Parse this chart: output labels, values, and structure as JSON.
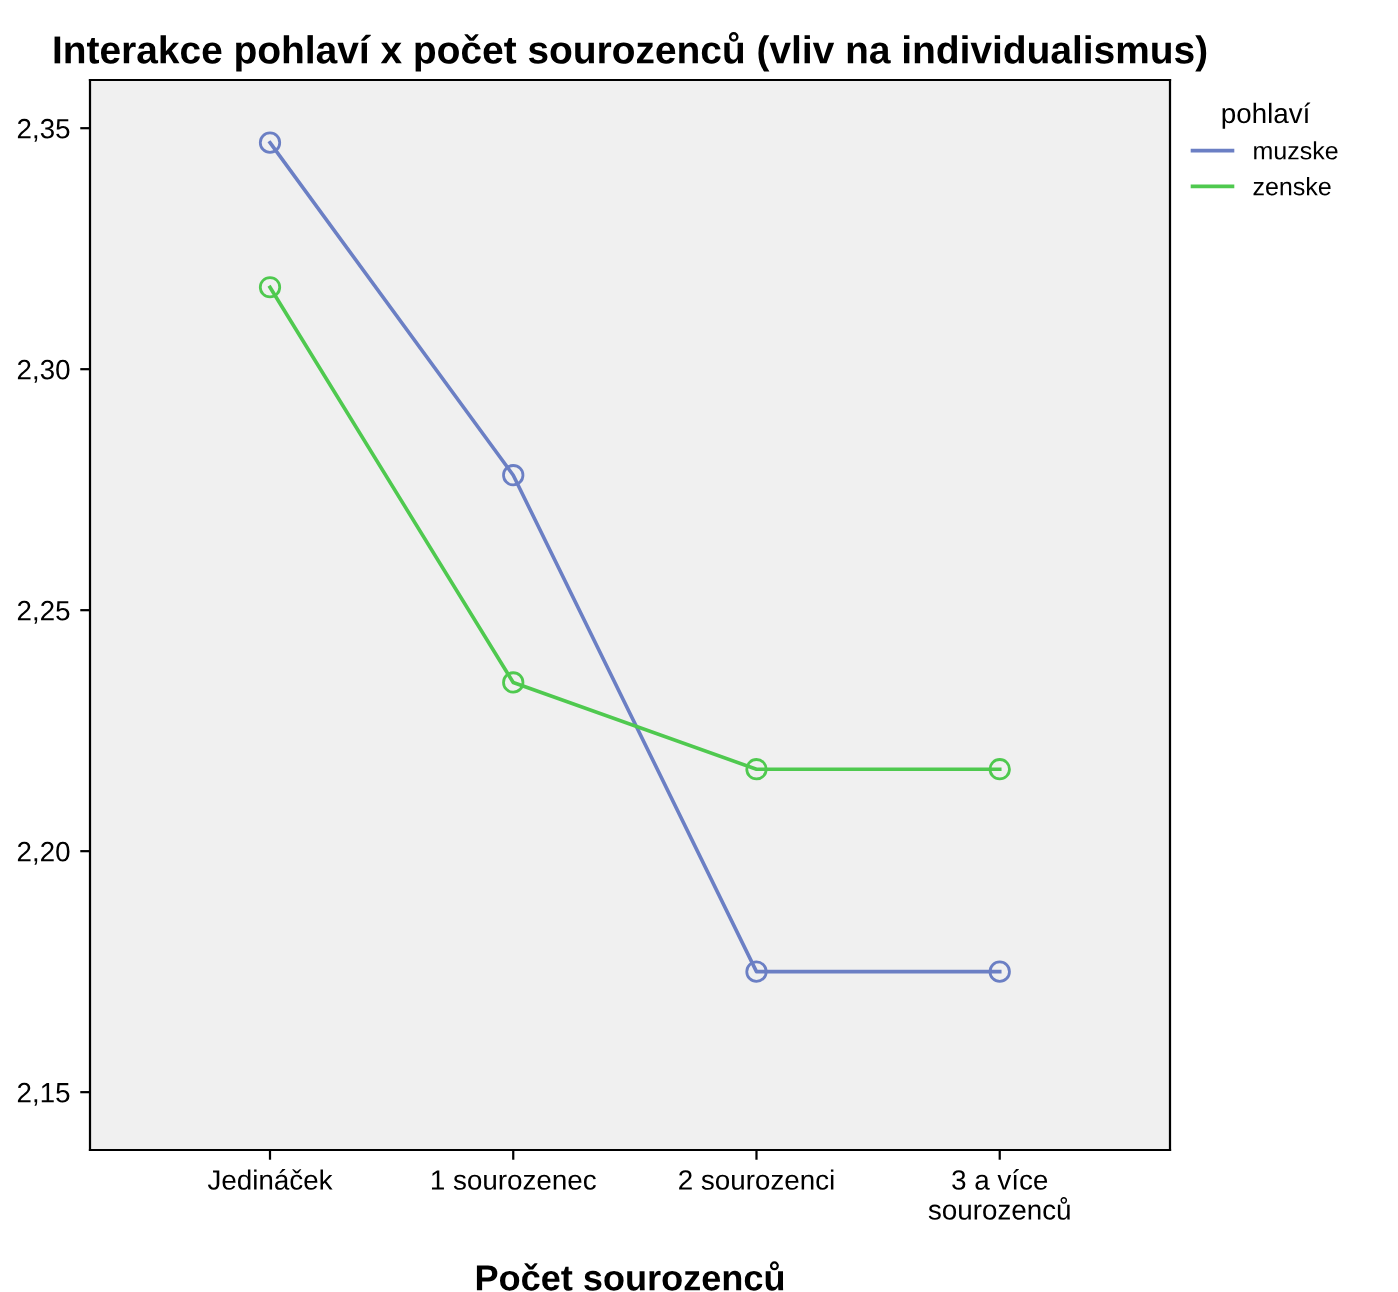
{
  "chart_data": {
    "type": "line",
    "title": "Interakce pohlaví x počet sourozenců (vliv na individualismus)",
    "xlabel": "Počet sourozenců",
    "legend_title": "pohlaví",
    "categories": [
      "Jedináček",
      "1 sourozenec",
      "2 sourozenci",
      "3 a více\nsourozenců"
    ],
    "series": [
      {
        "name": "muzske",
        "color": "#6b7fc4",
        "values": [
          2.347,
          2.278,
          2.175,
          2.175
        ]
      },
      {
        "name": "zenske",
        "color": "#4fc94f",
        "values": [
          2.317,
          2.235,
          2.217,
          2.217
        ]
      }
    ],
    "ylim": [
      2.138,
      2.36
    ],
    "yticks": [
      {
        "value": 2.15,
        "label": "2,15"
      },
      {
        "value": 2.2,
        "label": "2,20"
      },
      {
        "value": 2.25,
        "label": "2,25"
      },
      {
        "value": 2.3,
        "label": "2,30"
      },
      {
        "value": 2.35,
        "label": "2,35"
      }
    ],
    "marker": "circle",
    "line_style": "solid",
    "grid": false,
    "legend": "top right"
  }
}
